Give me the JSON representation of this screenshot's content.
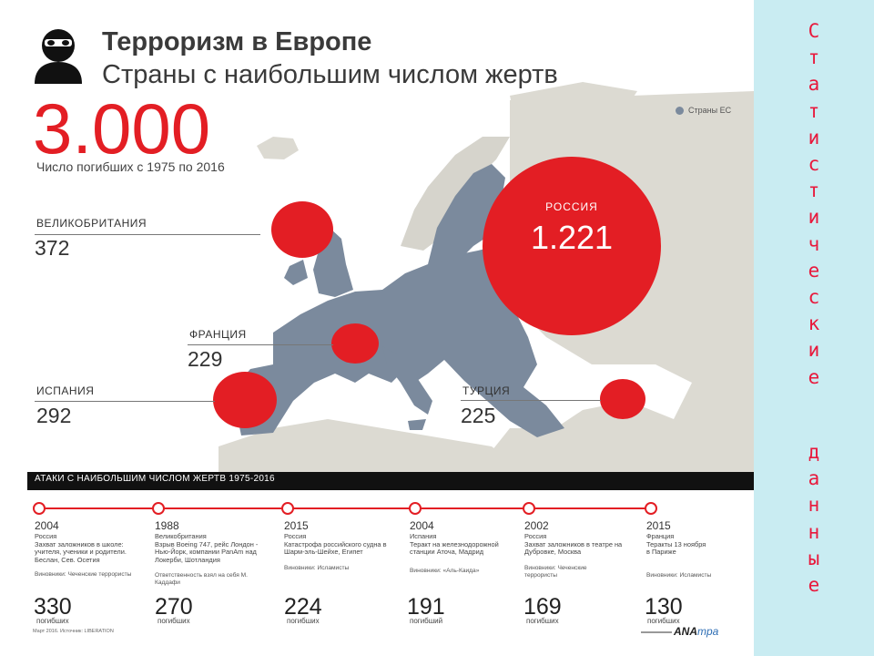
{
  "header": {
    "title": "Терроризм в Европе",
    "subtitle": "Страны с наибольшим числом жертв"
  },
  "total": {
    "value": "3.000",
    "caption": "Число погибших с 1975 по 2016"
  },
  "legend": {
    "label": "Страны ЕС",
    "color": "#7b8a9d"
  },
  "countries": {
    "uk": {
      "name": "ВЕЛИКОБРИТАНИЯ",
      "value": "372"
    },
    "france": {
      "name": "ФРАНЦИЯ",
      "value": "229"
    },
    "spain": {
      "name": "ИСПАНИЯ",
      "value": "292"
    },
    "turkey": {
      "name": "ТУРЦИЯ",
      "value": "225"
    },
    "russia": {
      "name": "РОССИЯ",
      "value": "1.221"
    }
  },
  "attacks_bar": "АТАКИ С НАИБОЛЬШИМ ЧИСЛОМ ЖЕРТВ 1975-2016",
  "events": [
    {
      "year": "2004",
      "desc": "Россия\nЗахват заложников в школе: учителя, ученики и родители. Беслан, Сев. Осетия",
      "resp": "Виновники: Чеченские террористы",
      "value": "330",
      "unit": "погибших"
    },
    {
      "year": "1988",
      "desc": "Великобритания\nВзрыв Boeing 747, рейс Лондон - Нью-Йорк, компании PanAm над Локерби, Шотландия",
      "resp": "Ответственность взял на себя М. Каддафи",
      "value": "270",
      "unit": "погибших"
    },
    {
      "year": "2015",
      "desc": "Россия\nКатастрофа российского судна в Шарм-эль-Шейхе, Египет",
      "resp": "Виновники: Исламисты",
      "value": "224",
      "unit": "погибших"
    },
    {
      "year": "2004",
      "desc": "Испания\nТеракт на железнодорожной станции Аточа, Мадрид",
      "resp": "Виновники: «Аль-Каида»",
      "value": "191",
      "unit": "погибший"
    },
    {
      "year": "2002",
      "desc": "Россия\nЗахват заложников в театре на Дубровке, Москва",
      "resp": "Виновники: Чеченские террористы",
      "value": "169",
      "unit": "погибших"
    },
    {
      "year": "2015",
      "desc": "Франция\nТеракты 13 ноября в Париже",
      "resp": "Виновники: Исламисты",
      "value": "130",
      "unit": "погибших"
    }
  ],
  "source": "Март 2016. Источник: LIBERATION",
  "brand": {
    "part1": "ANA",
    "part2": "mpa"
  },
  "side": {
    "word1": [
      "С",
      "т",
      "а",
      "т",
      "и",
      "с",
      "т",
      "и",
      "ч",
      "е",
      "с",
      "к",
      "и",
      "е"
    ],
    "word2": [
      "д",
      "а",
      "н",
      "н",
      "ы",
      "е"
    ]
  },
  "colors": {
    "accent": "#e31e24",
    "map_eu": "#7b8a9d",
    "map_land": "#dcdad2",
    "sea": "#ffffff",
    "side_bg": "#c9ecf2",
    "side_text": "#e8193c"
  }
}
